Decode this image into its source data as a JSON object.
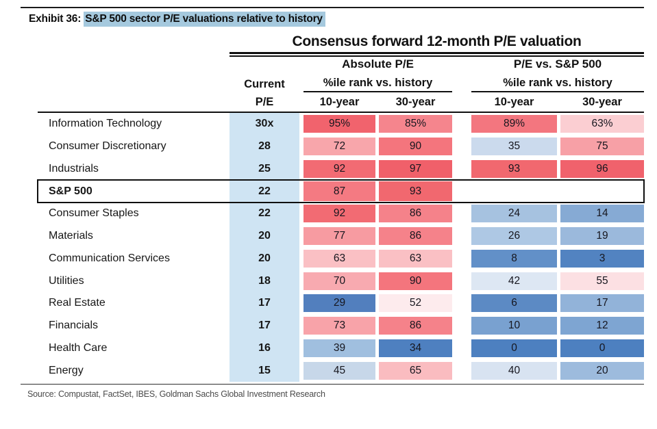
{
  "exhibit": {
    "prefix": "Exhibit 36:",
    "title": "S&P 500 sector P/E valuations relative to history"
  },
  "colors": {
    "title_highlight": "#a5c9de",
    "current_pe_band": "#cfe4f3",
    "table_border": "#0f0f0f",
    "max_red": "#f0606a",
    "max_blue": "#4d80c0"
  },
  "chart_data": {
    "type": "heatmap",
    "title": "Consensus forward 12-month P/E valuation",
    "groups": [
      {
        "label": "Absolute P/E"
      },
      {
        "label": "P/E vs. S&P 500"
      }
    ],
    "pct_header": "%ile rank vs. history",
    "current_header_line1": "Current",
    "current_header_line2": "P/E",
    "year_columns": [
      "10-year",
      "30-year"
    ],
    "columns": [
      "Current P/E",
      "Absolute P/E %ile rank 10-year",
      "Absolute P/E %ile rank 30-year",
      "P/E vs. S&P 500 %ile rank 10-year",
      "P/E vs. S&P 500 %ile rank 30-year"
    ],
    "rows": [
      {
        "sector": "Information Technology",
        "bold": false,
        "box": false,
        "current": "30x",
        "cells": [
          {
            "v": "95%",
            "n": 95,
            "c": "#f1636d"
          },
          {
            "v": "85%",
            "n": 85,
            "c": "#f5858d"
          },
          {
            "v": "89%",
            "n": 89,
            "c": "#f3767f"
          },
          {
            "v": "63%",
            "n": 63,
            "c": "#fbced2"
          }
        ]
      },
      {
        "sector": "Consumer Discretionary",
        "bold": false,
        "box": false,
        "current": "28",
        "cells": [
          {
            "v": "72",
            "n": 72,
            "c": "#f8a6ab"
          },
          {
            "v": "90",
            "n": 90,
            "c": "#f4757d"
          },
          {
            "v": "35",
            "n": 35,
            "c": "#cbdaed"
          },
          {
            "v": "75",
            "n": 75,
            "c": "#f7a0a6"
          }
        ]
      },
      {
        "sector": "Industrials",
        "bold": false,
        "box": false,
        "current": "25",
        "cells": [
          {
            "v": "92",
            "n": 92,
            "c": "#f26b73"
          },
          {
            "v": "97",
            "n": 97,
            "c": "#f0606a"
          },
          {
            "v": "93",
            "n": 93,
            "c": "#f1686f"
          },
          {
            "v": "96",
            "n": 96,
            "c": "#f0626c"
          }
        ]
      },
      {
        "sector": "S&P 500",
        "bold": true,
        "box": true,
        "current": "22",
        "cells": [
          {
            "v": "87",
            "n": 87,
            "c": "#f47a82"
          },
          {
            "v": "93",
            "n": 93,
            "c": "#f1686f"
          },
          null,
          null
        ]
      },
      {
        "sector": "Consumer Staples",
        "bold": false,
        "box": false,
        "current": "22",
        "cells": [
          {
            "v": "92",
            "n": 92,
            "c": "#f26b73"
          },
          {
            "v": "86",
            "n": 86,
            "c": "#f5828a"
          },
          {
            "v": "24",
            "n": 24,
            "c": "#a6c2e0"
          },
          {
            "v": "14",
            "n": 14,
            "c": "#86aad4"
          }
        ]
      },
      {
        "sector": "Materials",
        "bold": false,
        "box": false,
        "current": "20",
        "cells": [
          {
            "v": "77",
            "n": 77,
            "c": "#f79ba1"
          },
          {
            "v": "86",
            "n": 86,
            "c": "#f5828a"
          },
          {
            "v": "26",
            "n": 26,
            "c": "#aec8e4"
          },
          {
            "v": "19",
            "n": 19,
            "c": "#9bb9dc"
          }
        ]
      },
      {
        "sector": "Communication Services",
        "bold": false,
        "box": false,
        "current": "20",
        "cells": [
          {
            "v": "63",
            "n": 63,
            "c": "#fac0c4"
          },
          {
            "v": "63",
            "n": 63,
            "c": "#fac0c4"
          },
          {
            "v": "8",
            "n": 8,
            "c": "#6290c8"
          },
          {
            "v": "3",
            "n": 3,
            "c": "#5283c1"
          }
        ]
      },
      {
        "sector": "Utilities",
        "bold": false,
        "box": false,
        "current": "18",
        "cells": [
          {
            "v": "70",
            "n": 70,
            "c": "#f8aab0"
          },
          {
            "v": "90",
            "n": 90,
            "c": "#f4757d"
          },
          {
            "v": "42",
            "n": 42,
            "c": "#dde7f3"
          },
          {
            "v": "55",
            "n": 55,
            "c": "#fce0e3"
          }
        ]
      },
      {
        "sector": "Real Estate",
        "bold": false,
        "box": false,
        "current": "17",
        "cells": [
          {
            "v": "29",
            "n": 29,
            "c": "#527fbe"
          },
          {
            "v": "52",
            "n": 52,
            "c": "#fdebed"
          },
          {
            "v": "6",
            "n": 6,
            "c": "#5c8ac4"
          },
          {
            "v": "17",
            "n": 17,
            "c": "#92b3d9"
          }
        ]
      },
      {
        "sector": "Financials",
        "bold": false,
        "box": false,
        "current": "17",
        "cells": [
          {
            "v": "73",
            "n": 73,
            "c": "#f8a3a9"
          },
          {
            "v": "86",
            "n": 86,
            "c": "#f5828a"
          },
          {
            "v": "10",
            "n": 10,
            "c": "#79a1d0"
          },
          {
            "v": "12",
            "n": 12,
            "c": "#7ea5d2"
          }
        ]
      },
      {
        "sector": "Health Care",
        "bold": false,
        "box": false,
        "current": "16",
        "cells": [
          {
            "v": "39",
            "n": 39,
            "c": "#a0bfdf"
          },
          {
            "v": "34",
            "n": 34,
            "c": "#4e80c0"
          },
          {
            "v": "0",
            "n": 0,
            "c": "#4d80c0"
          },
          {
            "v": "0",
            "n": 0,
            "c": "#4d80c0"
          }
        ]
      },
      {
        "sector": "Energy",
        "bold": false,
        "box": false,
        "current": "15",
        "cells": [
          {
            "v": "45",
            "n": 45,
            "c": "#c7d7e9"
          },
          {
            "v": "65",
            "n": 65,
            "c": "#fabcc0"
          },
          {
            "v": "40",
            "n": 40,
            "c": "#d8e3f1"
          },
          {
            "v": "20",
            "n": 20,
            "c": "#9dbbdd"
          }
        ]
      }
    ]
  },
  "source": "Source: Compustat, FactSet, IBES, Goldman Sachs Global Investment Research"
}
